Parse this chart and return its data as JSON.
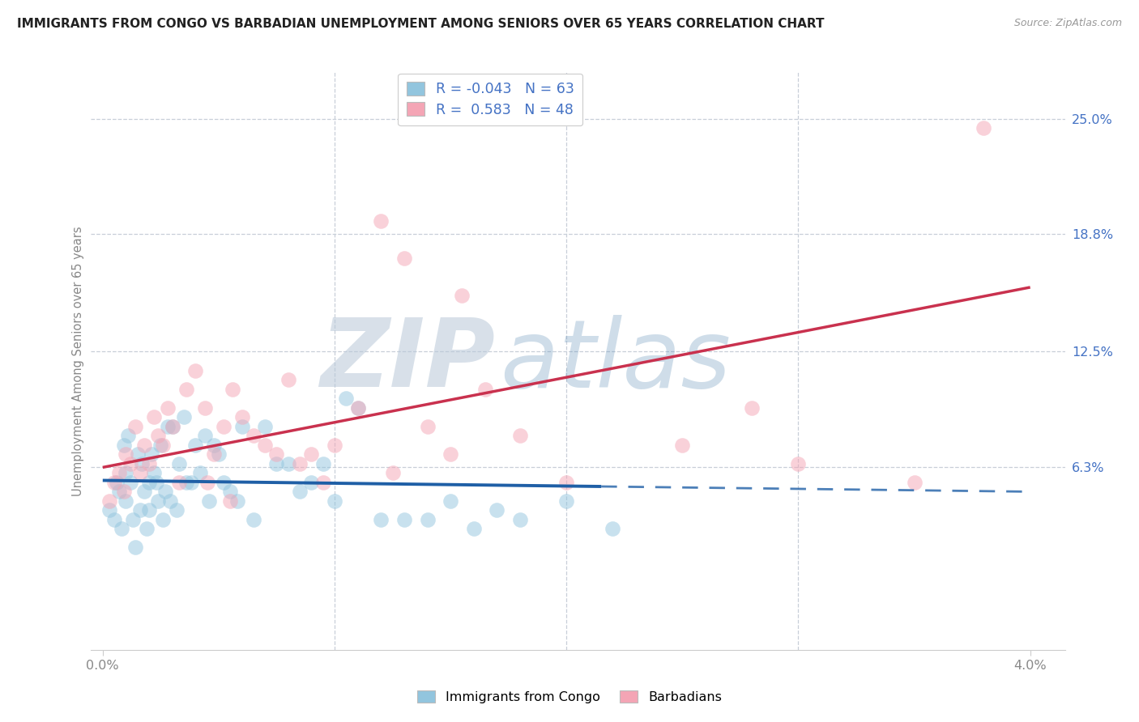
{
  "title": "IMMIGRANTS FROM CONGO VS BARBADIAN UNEMPLOYMENT AMONG SENIORS OVER 65 YEARS CORRELATION CHART",
  "source": "Source: ZipAtlas.com",
  "ylabel": "Unemployment Among Seniors over 65 years",
  "ytick_labels": [
    "6.3%",
    "12.5%",
    "18.8%",
    "25.0%"
  ],
  "ytick_values": [
    6.3,
    12.5,
    18.8,
    25.0
  ],
  "xlim": [
    -0.05,
    4.15
  ],
  "ylim": [
    -3.5,
    27.5
  ],
  "blue_color": "#92c5de",
  "pink_color": "#f4a5b5",
  "blue_line_color": "#1f5fa6",
  "pink_line_color": "#c9314e",
  "watermark_color": "#c8d8e8",
  "legend_text_color": "#4472c4",
  "title_color": "#222222",
  "source_color": "#999999",
  "axis_color": "#888888",
  "grid_color": "#c8cfd8",
  "blue_r": -0.043,
  "pink_r": 0.583,
  "blue_solid_end": 2.15,
  "blue_scatter_x": [
    0.03,
    0.05,
    0.06,
    0.07,
    0.08,
    0.09,
    0.1,
    0.1,
    0.11,
    0.12,
    0.13,
    0.14,
    0.15,
    0.16,
    0.17,
    0.18,
    0.19,
    0.2,
    0.2,
    0.21,
    0.22,
    0.23,
    0.24,
    0.25,
    0.26,
    0.27,
    0.28,
    0.29,
    0.3,
    0.32,
    0.33,
    0.35,
    0.36,
    0.38,
    0.4,
    0.42,
    0.44,
    0.46,
    0.48,
    0.5,
    0.52,
    0.55,
    0.58,
    0.6,
    0.65,
    0.7,
    0.75,
    0.8,
    0.85,
    0.9,
    0.95,
    1.0,
    1.05,
    1.1,
    1.2,
    1.3,
    1.4,
    1.5,
    1.6,
    1.7,
    1.8,
    2.0,
    2.2
  ],
  "blue_scatter_y": [
    4.0,
    3.5,
    5.5,
    5.0,
    3.0,
    7.5,
    6.0,
    4.5,
    8.0,
    5.5,
    3.5,
    2.0,
    7.0,
    4.0,
    6.5,
    5.0,
    3.0,
    5.5,
    4.0,
    7.0,
    6.0,
    5.5,
    4.5,
    7.5,
    3.5,
    5.0,
    8.5,
    4.5,
    8.5,
    4.0,
    6.5,
    9.0,
    5.5,
    5.5,
    7.5,
    6.0,
    8.0,
    4.5,
    7.5,
    7.0,
    5.5,
    5.0,
    4.5,
    8.5,
    3.5,
    8.5,
    6.5,
    6.5,
    5.0,
    5.5,
    6.5,
    4.5,
    10.0,
    9.5,
    3.5,
    3.5,
    3.5,
    4.5,
    3.0,
    4.0,
    3.5,
    4.5,
    3.0
  ],
  "pink_scatter_x": [
    0.03,
    0.05,
    0.07,
    0.09,
    0.1,
    0.12,
    0.14,
    0.16,
    0.18,
    0.2,
    0.22,
    0.24,
    0.26,
    0.28,
    0.3,
    0.33,
    0.36,
    0.4,
    0.44,
    0.48,
    0.52,
    0.56,
    0.6,
    0.65,
    0.7,
    0.8,
    0.9,
    1.0,
    1.1,
    1.2,
    1.3,
    1.4,
    1.5,
    1.55,
    1.65,
    1.8,
    2.0,
    2.5,
    2.8,
    3.0,
    3.5,
    3.8,
    0.45,
    0.55,
    0.75,
    0.85,
    0.95,
    1.25
  ],
  "pink_scatter_y": [
    4.5,
    5.5,
    6.0,
    5.0,
    7.0,
    6.5,
    8.5,
    6.0,
    7.5,
    6.5,
    9.0,
    8.0,
    7.5,
    9.5,
    8.5,
    5.5,
    10.5,
    11.5,
    9.5,
    7.0,
    8.5,
    10.5,
    9.0,
    8.0,
    7.5,
    11.0,
    7.0,
    7.5,
    9.5,
    19.5,
    17.5,
    8.5,
    7.0,
    15.5,
    10.5,
    8.0,
    5.5,
    7.5,
    9.5,
    6.5,
    5.5,
    24.5,
    5.5,
    4.5,
    7.0,
    6.5,
    5.5,
    6.0
  ]
}
